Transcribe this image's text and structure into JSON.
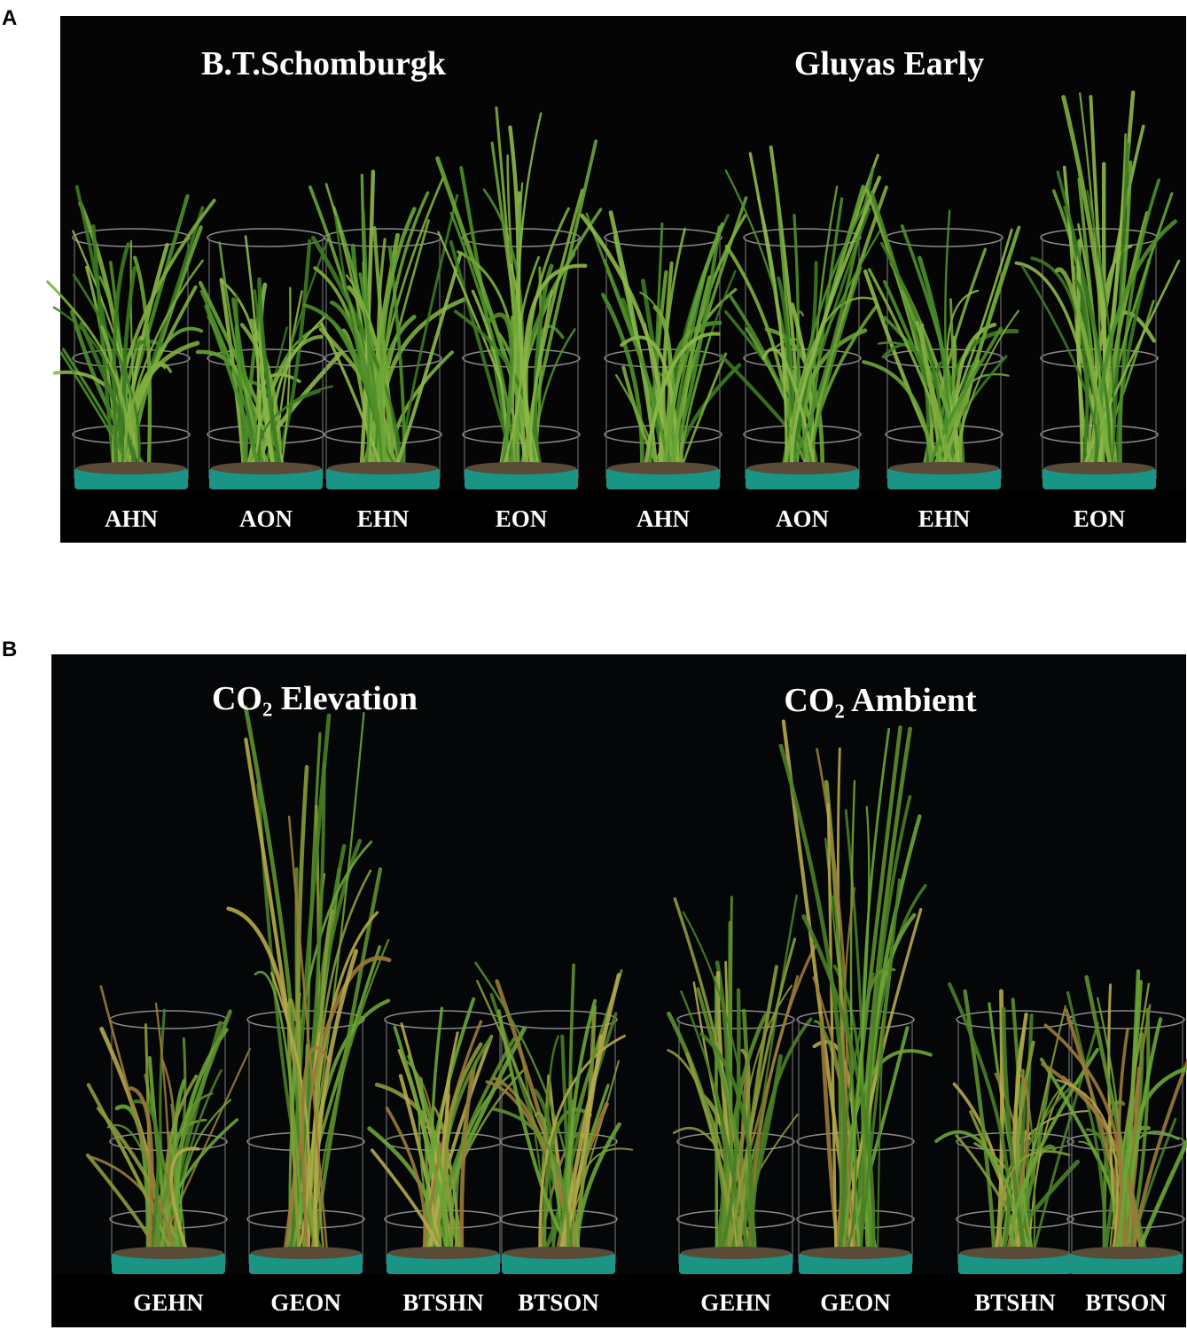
{
  "panels": [
    {
      "label": "A",
      "titles": [
        "B.T.Schomburgk",
        "Gluyas Early"
      ],
      "pots": [
        "AHN",
        "AON",
        "EHN",
        "EON",
        "AHN",
        "AON",
        "EHN",
        "EON"
      ]
    },
    {
      "label": "B",
      "titles": [
        "CO₂ Elevation",
        "CO₂ Ambient"
      ],
      "pots": [
        "GEHN",
        "GEON",
        "BTSHN",
        "BTSON",
        "GEHN",
        "GEON",
        "BTSHN",
        "BTSON"
      ]
    }
  ]
}
